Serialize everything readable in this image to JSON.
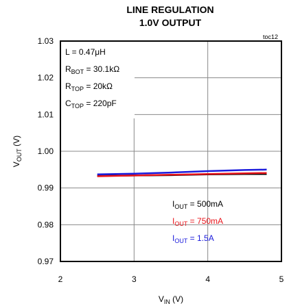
{
  "chart_data": {
    "type": "line",
    "title": "LINE REGULATION",
    "subtitle": "1.0V OUTPUT",
    "figure_id": "toc12",
    "xlabel": {
      "main": "V",
      "sub": "IN",
      "suffix": " (V)"
    },
    "ylabel": {
      "main": "V",
      "sub": "OUT",
      "suffix": " (V)"
    },
    "xlim": [
      2,
      5
    ],
    "ylim": [
      0.97,
      1.03
    ],
    "xticks": [
      "2",
      "3",
      "4",
      "5"
    ],
    "yticks": [
      "0.97",
      "0.98",
      "0.99",
      "1.00",
      "1.01",
      "1.02",
      "1.03"
    ],
    "grid": true,
    "conditions": [
      {
        "main": "L = 0.47μH",
        "sub": "",
        "suffix": ""
      },
      {
        "main": "R",
        "sub": "BOT",
        "suffix": " = 30.1kΩ"
      },
      {
        "main": "R",
        "sub": "TOP",
        "suffix": " = 20kΩ"
      },
      {
        "main": "C",
        "sub": "TOP",
        "suffix": " = 220pF"
      }
    ],
    "series": [
      {
        "name": {
          "main": "I",
          "sub": "OUT",
          "suffix": " = 500mA"
        },
        "color": "#000000",
        "x": [
          2.5,
          3.0,
          3.5,
          4.0,
          4.5,
          4.8
        ],
        "y": [
          0.9933,
          0.9934,
          0.9935,
          0.9937,
          0.9938,
          0.9938
        ]
      },
      {
        "name": {
          "main": "I",
          "sub": "OUT",
          "suffix": " = 750mA"
        },
        "color": "#e8141b",
        "x": [
          2.5,
          3.0,
          3.5,
          4.0,
          4.5,
          4.8
        ],
        "y": [
          0.9932,
          0.9934,
          0.9936,
          0.9938,
          0.994,
          0.9941
        ]
      },
      {
        "name": {
          "main": "I",
          "sub": "OUT",
          "suffix": " = 1.5A"
        },
        "color": "#1a1adc",
        "x": [
          2.5,
          3.0,
          3.5,
          4.0,
          4.5,
          4.8
        ],
        "y": [
          0.9937,
          0.9939,
          0.9942,
          0.9946,
          0.9949,
          0.995
        ]
      }
    ]
  }
}
